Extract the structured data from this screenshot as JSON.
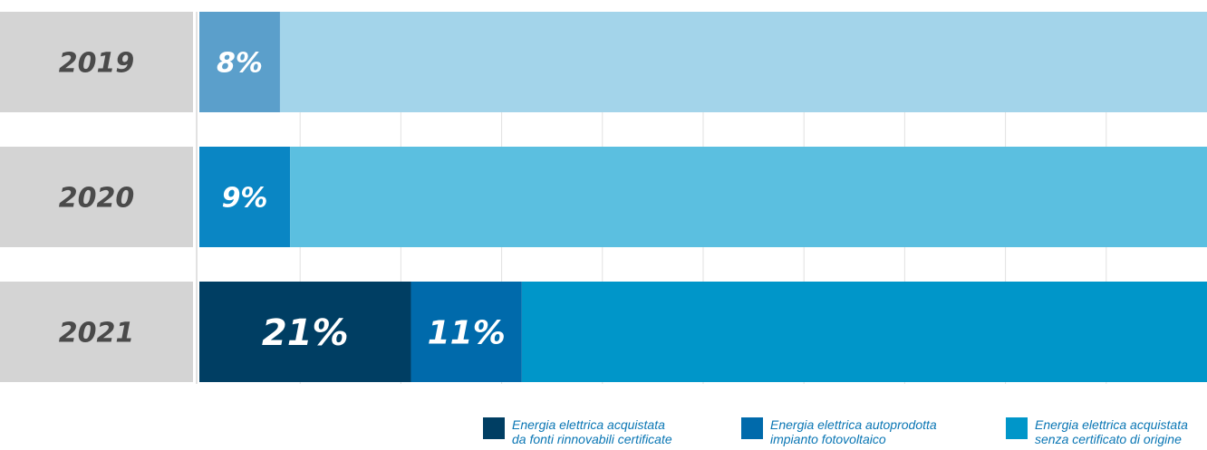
{
  "chart_data": {
    "type": "bar",
    "orientation": "horizontal",
    "stacked": true,
    "categories": [
      "2019",
      "2020",
      "2021"
    ],
    "xlim": [
      0,
      100
    ],
    "grid": true,
    "legend_position": "bottom-right",
    "rows": [
      {
        "year": "2019",
        "segments": [
          {
            "series": "autoprodotta",
            "value": 8,
            "label": "8%",
            "color": "#5b9fcb"
          },
          {
            "series": "senza_certificato",
            "value": 92,
            "label": "",
            "color": "#a3d4ea"
          }
        ]
      },
      {
        "year": "2020",
        "segments": [
          {
            "series": "autoprodotta",
            "value": 9,
            "label": "9%",
            "color": "#0a86c4"
          },
          {
            "series": "senza_certificato",
            "value": 91,
            "label": "",
            "color": "#5bbfe0"
          }
        ]
      },
      {
        "year": "2021",
        "segments": [
          {
            "series": "rinnovabili",
            "value": 21,
            "label": "21%",
            "color": "#003e63"
          },
          {
            "series": "autoprodotta",
            "value": 11,
            "label": "11%",
            "color": "#006aab"
          },
          {
            "series": "senza_certificato",
            "value": 68,
            "label": "",
            "color": "#0096c9"
          }
        ]
      }
    ],
    "series": [
      {
        "key": "rinnovabili",
        "name_lines": [
          "Energia elettrica acquistata",
          "da fonti rinnovabili certificate"
        ],
        "color": "#003e63"
      },
      {
        "key": "autoprodotta",
        "name_lines": [
          "Energia elettrica autoprodotta",
          "impianto fotovoltaico"
        ],
        "color": "#006aab"
      },
      {
        "key": "senza_certificato",
        "name_lines": [
          "Energia elettrica acquistata",
          "senza certificato di origine"
        ],
        "color": "#0096c9"
      }
    ]
  },
  "colors": {
    "year_box": "#d4d4d4",
    "grid": "#e2e2e2",
    "year_text": "#4a4a4a",
    "legend_text": "#0a76b4"
  }
}
